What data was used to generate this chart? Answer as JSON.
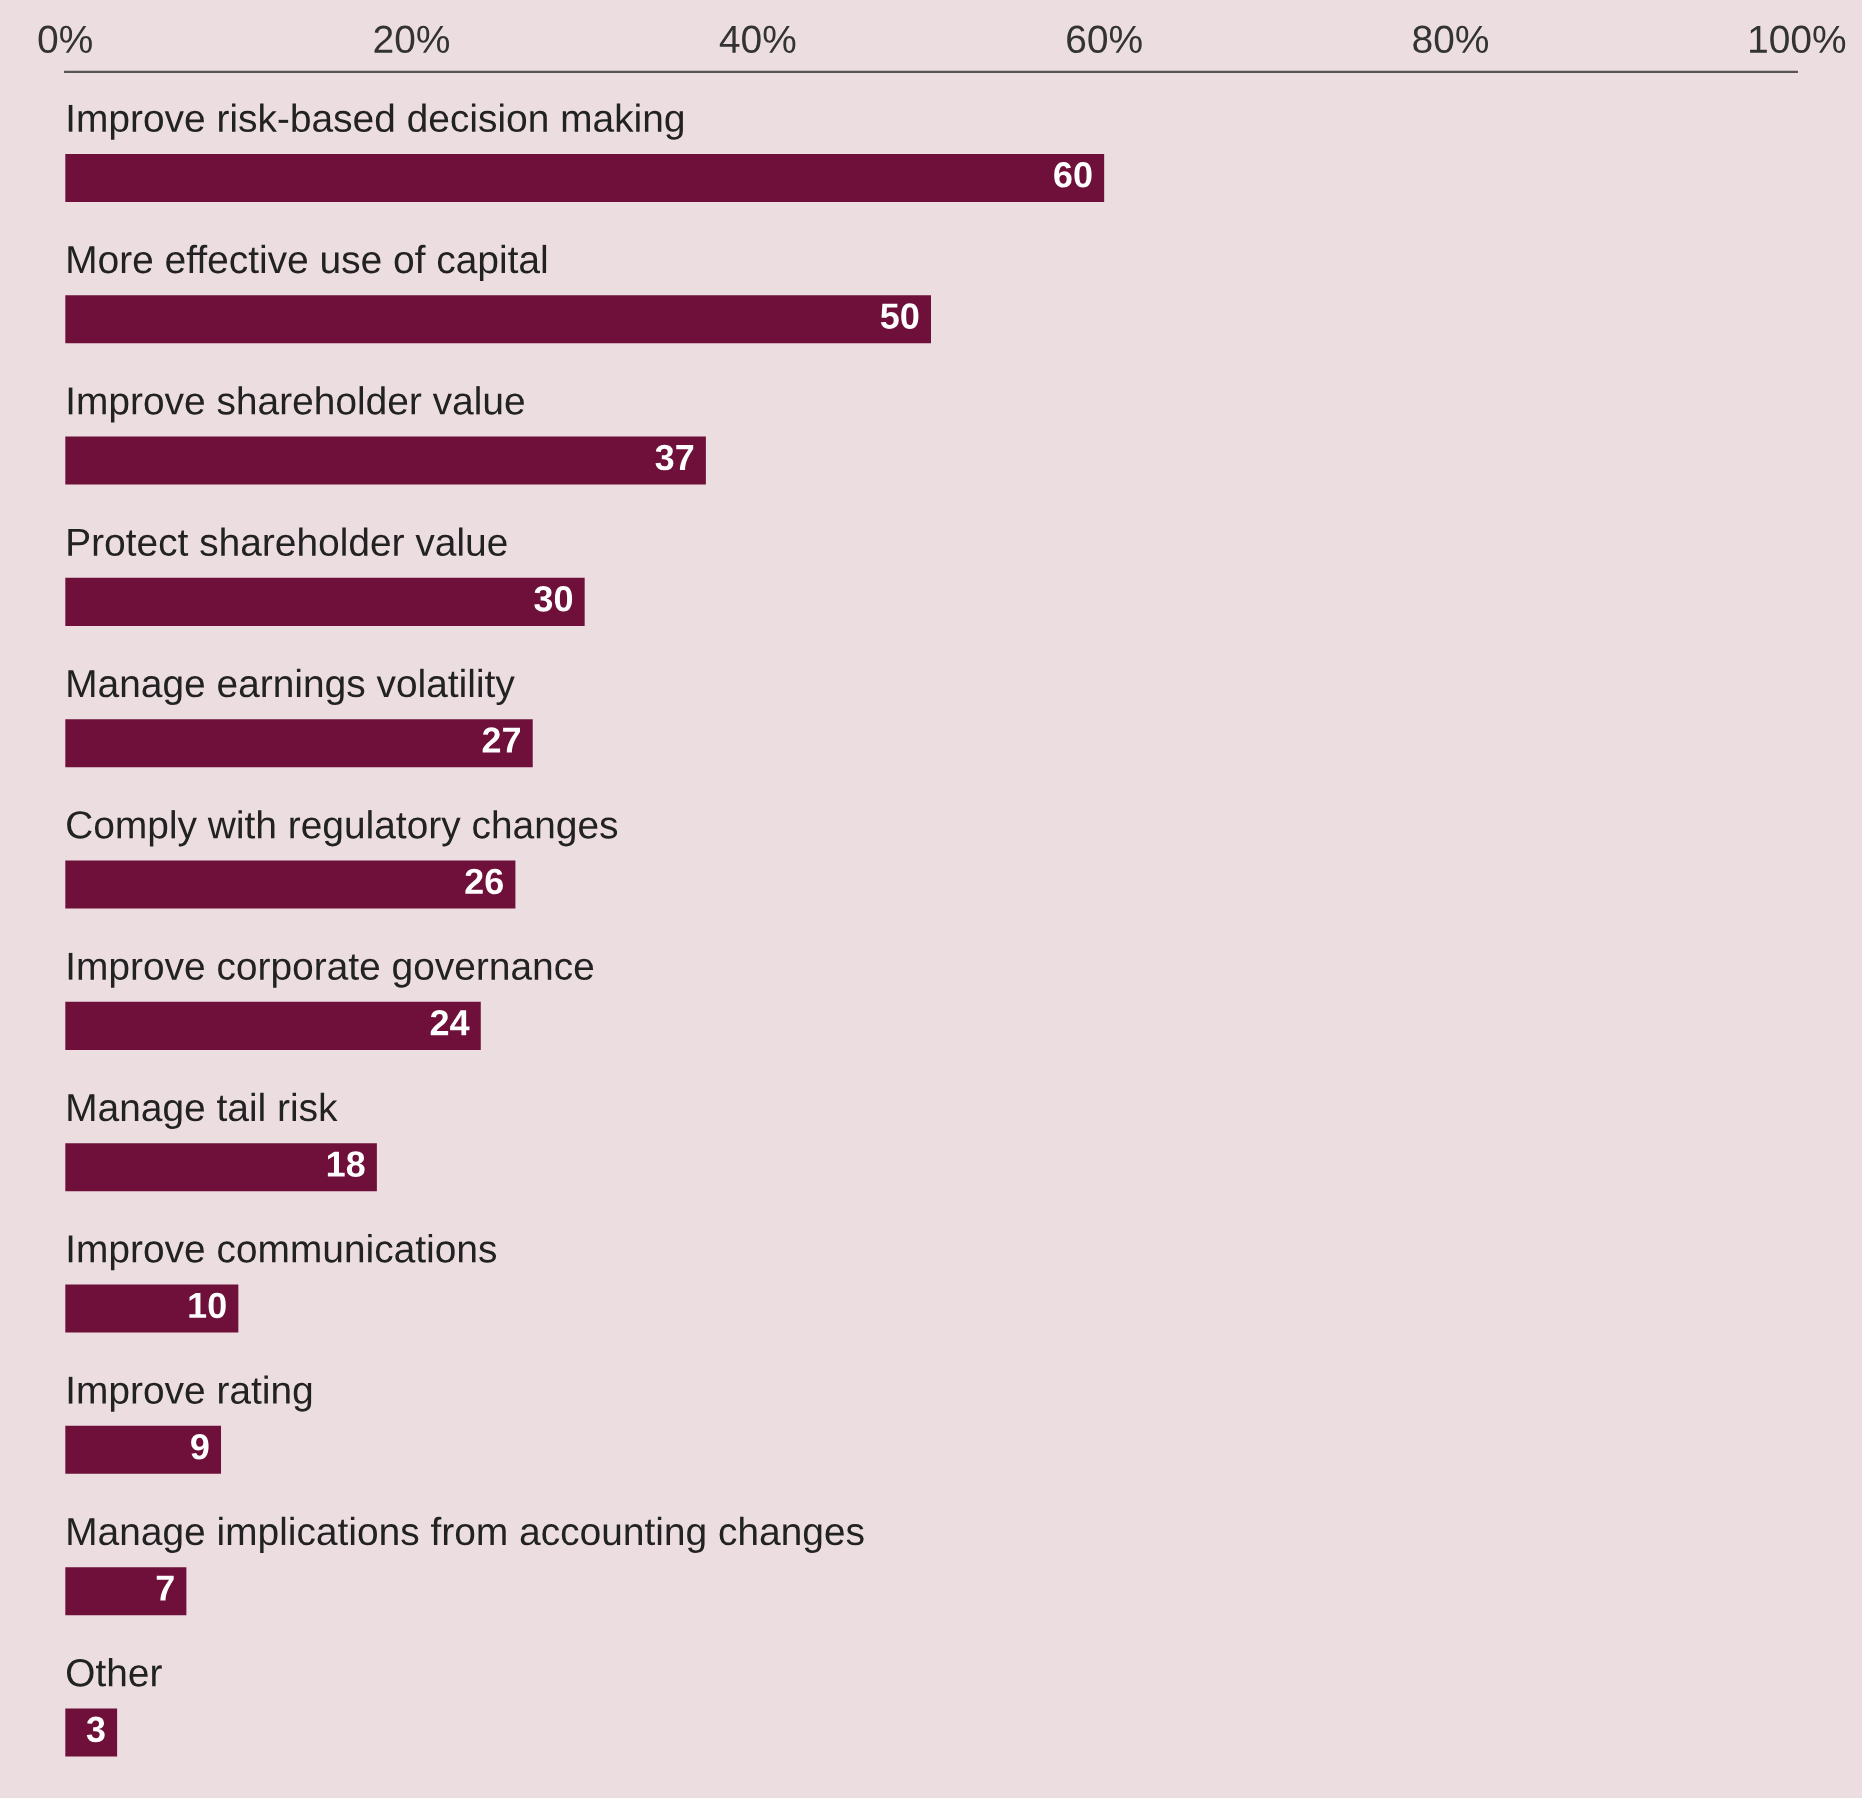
{
  "chart_data": {
    "type": "bar",
    "orientation": "horizontal",
    "categories": [
      "Improve risk-based decision making",
      "More effective use of capital",
      "Improve shareholder value",
      "Protect shareholder value",
      "Manage earnings volatility",
      "Comply with regulatory changes",
      "Improve corporate governance",
      "Manage tail risk",
      "Improve communications",
      "Improve rating",
      "Manage implications from accounting changes",
      "Other"
    ],
    "values": [
      60,
      50,
      37,
      30,
      27,
      26,
      24,
      18,
      10,
      9,
      7,
      3
    ],
    "color": "#6e1039",
    "xlim": [
      0,
      100
    ],
    "xticks": [
      {
        "value": 0,
        "label": "0%"
      },
      {
        "value": 20,
        "label": "20%"
      },
      {
        "value": 40,
        "label": "40%"
      },
      {
        "value": 60,
        "label": "60%"
      },
      {
        "value": 80,
        "label": "80%"
      },
      {
        "value": 100,
        "label": "100%"
      }
    ],
    "data_labels": true,
    "grid": false,
    "legend": false
  }
}
